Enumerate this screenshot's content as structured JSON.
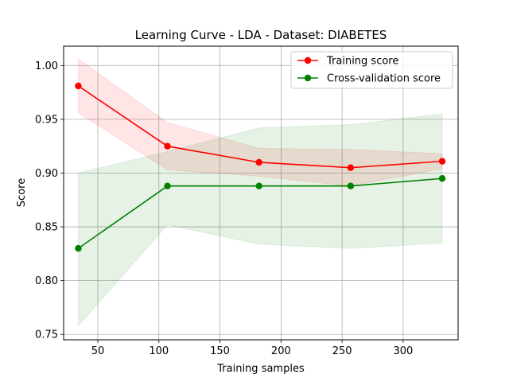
{
  "chart_data": {
    "type": "line",
    "title": "Learning Curve - LDA - Dataset: DIABETES",
    "xlabel": "Training samples",
    "ylabel": "Score",
    "xlim": [
      22,
      345
    ],
    "ylim": [
      0.745,
      1.018
    ],
    "grid": true,
    "legend_position": "top-right",
    "x": [
      34,
      107,
      182,
      257,
      332
    ],
    "x_ticks": [
      50,
      100,
      150,
      200,
      250,
      300
    ],
    "x_tick_labels": [
      "50",
      "100",
      "150",
      "200",
      "250",
      "300"
    ],
    "y_ticks": [
      0.75,
      0.8,
      0.85,
      0.9,
      0.95,
      1.0
    ],
    "y_tick_labels": [
      "0.75",
      "0.80",
      "0.85",
      "0.90",
      "0.95",
      "1.00"
    ],
    "series": [
      {
        "name": "Training score",
        "color": "#ff0000",
        "band_color": "#ff0000",
        "values": [
          0.981,
          0.925,
          0.91,
          0.905,
          0.911
        ],
        "upper": [
          1.006,
          0.947,
          0.923,
          0.922,
          0.918
        ],
        "lower": [
          0.956,
          0.903,
          0.897,
          0.888,
          0.904
        ]
      },
      {
        "name": "Cross-validation score",
        "color": "#008000",
        "band_color": "#008000",
        "values": [
          0.83,
          0.888,
          0.888,
          0.888,
          0.895
        ],
        "upper": [
          0.9,
          0.92,
          0.942,
          0.945,
          0.955
        ],
        "lower": [
          0.758,
          0.852,
          0.834,
          0.83,
          0.835
        ]
      }
    ]
  }
}
